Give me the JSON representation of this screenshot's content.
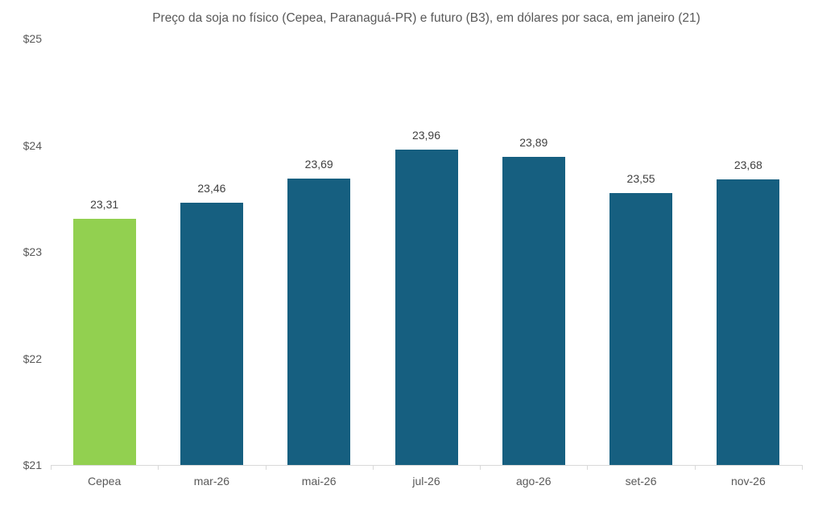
{
  "chart_data": {
    "type": "bar",
    "title": "Preço da soja no físico (Cepea, Paranaguá-PR) e futuro (B3), em dólares por saca, em janeiro (21)",
    "categories": [
      "Cepea",
      "mar-26",
      "mai-26",
      "jul-26",
      "ago-26",
      "set-26",
      "nov-26"
    ],
    "values": [
      23.31,
      23.46,
      23.69,
      23.96,
      23.89,
      23.55,
      23.68
    ],
    "value_labels": [
      "23,31",
      "23,46",
      "23,69",
      "23,96",
      "23,89",
      "23,55",
      "23,68"
    ],
    "y_ticks": [
      {
        "label": "$25",
        "value": 25
      },
      {
        "label": "$24",
        "value": 24
      },
      {
        "label": "$23",
        "value": 23
      },
      {
        "label": "$22",
        "value": 22
      },
      {
        "label": "$21",
        "value": 21
      }
    ],
    "ylim": [
      21,
      25
    ],
    "xlabel": "",
    "ylabel": "",
    "grid": false,
    "legend": "none",
    "bar_colors": [
      "#92D050",
      "#165F80",
      "#165F80",
      "#165F80",
      "#165F80",
      "#165F80",
      "#165F80"
    ],
    "colors": {
      "highlight_bar": "#92D050",
      "series_bar": "#165F80",
      "axis_line": "#D9D9D9",
      "title_text": "#595959",
      "value_label_text": "#404040",
      "tick_text": "#595959",
      "background": "#FFFFFF"
    }
  }
}
